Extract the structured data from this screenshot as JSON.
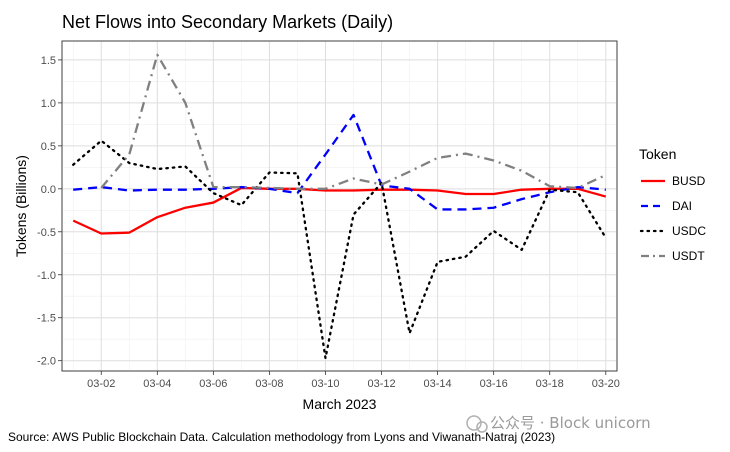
{
  "chart_data": {
    "type": "line",
    "title": "Net Flows into Secondary Markets (Daily)",
    "xlabel": "March 2023",
    "ylabel": "Tokens (Billions)",
    "x": [
      "03-01",
      "03-02",
      "03-03",
      "03-04",
      "03-05",
      "03-06",
      "03-07",
      "03-08",
      "03-09",
      "03-10",
      "03-11",
      "03-12",
      "03-13",
      "03-14",
      "03-15",
      "03-16",
      "03-17",
      "03-18",
      "03-19",
      "03-20"
    ],
    "x_tick_labels": [
      "03-02",
      "03-04",
      "03-06",
      "03-08",
      "03-10",
      "03-12",
      "03-14",
      "03-16",
      "03-18",
      "03-20"
    ],
    "y_tick_labels": [
      "-2.0",
      "-1.5",
      "-1.0",
      "-0.5",
      "0.0",
      "0.5",
      "1.0",
      "1.5"
    ],
    "ylim": [
      -2.12,
      1.72
    ],
    "grid": true,
    "legend_title": "Token",
    "legend_position": "right",
    "series": [
      {
        "name": "BUSD",
        "color": "#ff0000",
        "dash": "solid",
        "values": [
          -0.37,
          -0.52,
          -0.51,
          -0.33,
          -0.22,
          -0.16,
          0.01,
          0.0,
          0.0,
          -0.02,
          -0.02,
          -0.01,
          -0.01,
          -0.02,
          -0.06,
          -0.06,
          -0.01,
          0.0,
          0.0,
          -0.09
        ]
      },
      {
        "name": "DAI",
        "color": "#0000ff",
        "dash": "dashed",
        "values": [
          -0.01,
          0.02,
          -0.02,
          -0.01,
          -0.01,
          0.0,
          0.02,
          0.0,
          -0.05,
          0.4,
          0.86,
          0.04,
          0.0,
          -0.24,
          -0.24,
          -0.22,
          -0.12,
          -0.04,
          0.02,
          -0.01
        ]
      },
      {
        "name": "USDC",
        "color": "#000000",
        "dash": "dotted",
        "values": [
          0.28,
          0.56,
          0.3,
          0.23,
          0.26,
          -0.05,
          -0.19,
          0.19,
          0.18,
          -1.97,
          -0.3,
          0.07,
          -1.68,
          -0.85,
          -0.79,
          -0.49,
          -0.71,
          -0.01,
          -0.04,
          -0.57
        ]
      },
      {
        "name": "USDT",
        "color": "#808080",
        "dash": "dotdash",
        "values": [
          null,
          0.01,
          0.4,
          1.56,
          1.0,
          0.02,
          0.02,
          0.01,
          0.0,
          0.0,
          0.12,
          0.05,
          0.2,
          0.36,
          0.41,
          0.33,
          0.21,
          0.03,
          0.01,
          0.16
        ]
      }
    ]
  },
  "caption": "Source: AWS Public Blockchain Data. Calculation methodology from Lyons and Viwanath-Natraj (2023)",
  "watermark": "公众号 · Block unicorn"
}
